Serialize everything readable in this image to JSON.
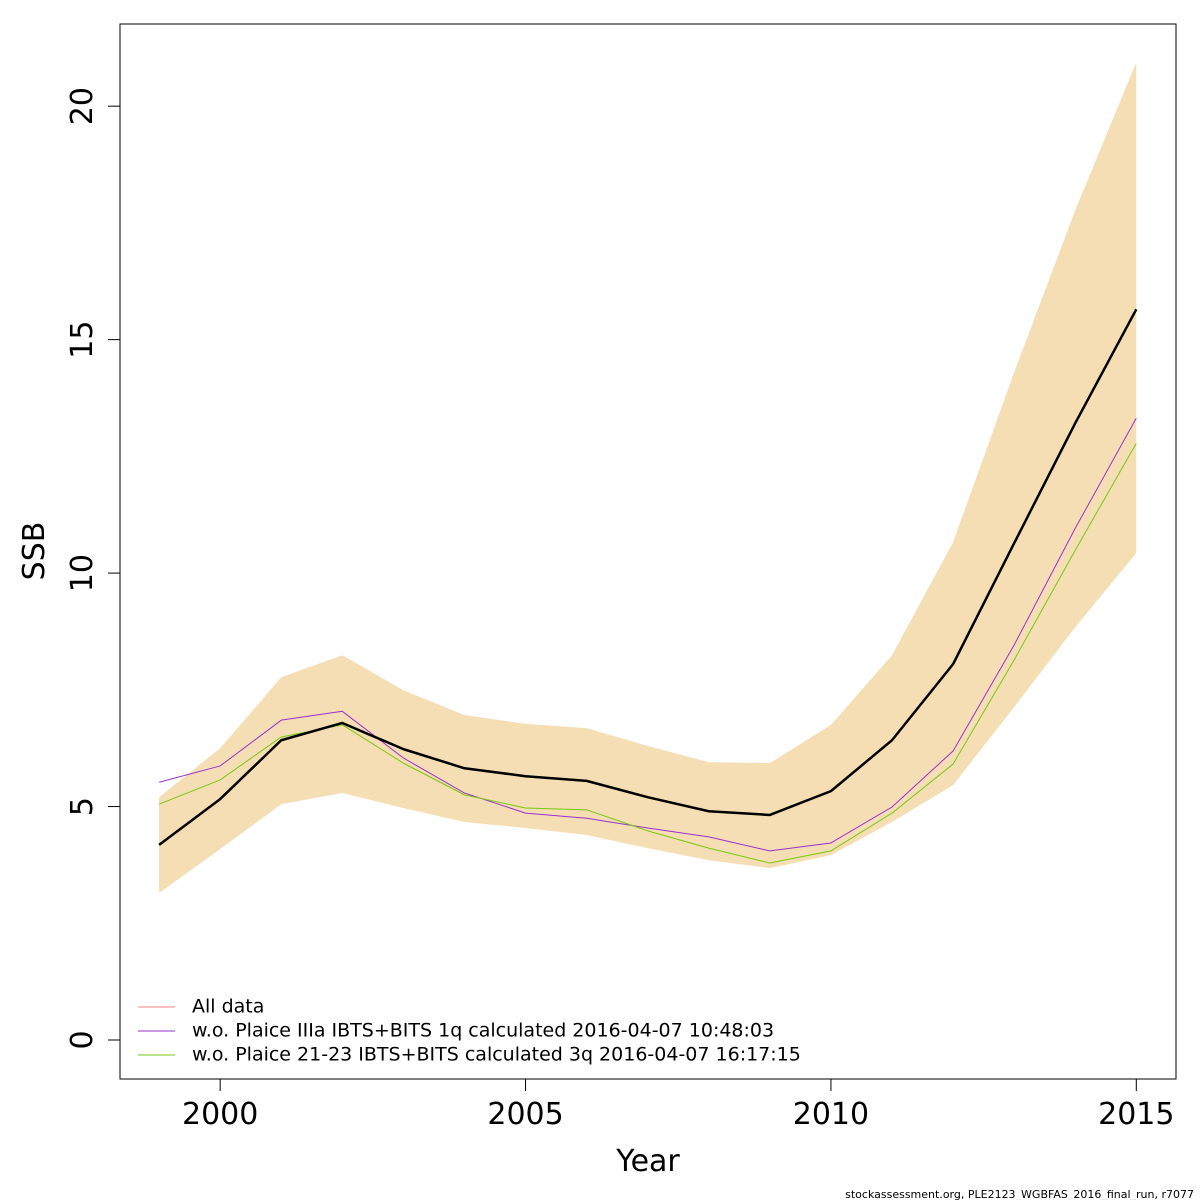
{
  "chart_data": {
    "type": "line",
    "xlabel": "Year",
    "ylabel": "SSB",
    "footer": "stockassessment.org, PLE2123_WGBFAS_2016_final_run, r7077",
    "x": [
      1999,
      2000,
      2001,
      2002,
      2003,
      2004,
      2005,
      2006,
      2007,
      2008,
      2009,
      2010,
      2011,
      2012,
      2013,
      2014,
      2015
    ],
    "band": {
      "color": "#f5deb3",
      "lower": [
        3.15,
        4.09,
        5.05,
        5.29,
        4.97,
        4.67,
        4.54,
        4.39,
        4.11,
        3.85,
        3.68,
        3.96,
        4.67,
        5.46,
        7.13,
        8.84,
        10.43
      ],
      "upper": [
        5.2,
        6.25,
        7.77,
        8.24,
        7.49,
        6.96,
        6.77,
        6.68,
        6.3,
        5.95,
        5.93,
        6.75,
        8.24,
        10.66,
        14.3,
        17.77,
        20.94
      ]
    },
    "series": [
      {
        "name": "All data",
        "color": "#000000",
        "legend_color": "#f08080",
        "width": 2.5,
        "values": [
          4.18,
          5.16,
          6.42,
          6.79,
          6.23,
          5.82,
          5.65,
          5.55,
          5.2,
          4.9,
          4.82,
          5.33,
          6.42,
          8.05,
          10.64,
          13.21,
          15.65
        ]
      },
      {
        "name": "w.o. Plaice IIIa IBTS+BITS 1q calculated 2016-04-07 10:48:03",
        "color": "#9932cc",
        "legend_color": "#9932cc",
        "width": 1,
        "values": [
          5.52,
          5.87,
          6.85,
          7.04,
          6.04,
          5.29,
          4.86,
          4.75,
          4.54,
          4.35,
          4.05,
          4.22,
          4.99,
          6.19,
          8.46,
          10.96,
          13.32
        ]
      },
      {
        "name": "w.o. Plaice 21-23 IBTS+BITS calculated 3q 2016-04-07 16:17:15",
        "color": "#76c80f",
        "legend_color": "#76c80f",
        "width": 1,
        "values": [
          5.05,
          5.57,
          6.49,
          6.75,
          5.93,
          5.25,
          4.97,
          4.93,
          4.48,
          4.11,
          3.79,
          4.05,
          4.86,
          5.91,
          8.14,
          10.49,
          12.78
        ]
      }
    ],
    "xlim": [
      1998.36,
      2015.65
    ],
    "ylim": [
      -0.835,
      21.76
    ],
    "xticks": [
      2000,
      2005,
      2010,
      2015
    ],
    "yticks": [
      0,
      5,
      10,
      15,
      20
    ],
    "legend": "bottom-left"
  }
}
